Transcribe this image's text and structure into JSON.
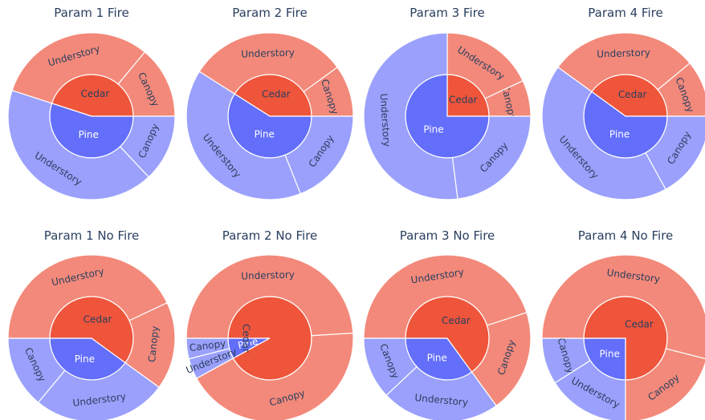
{
  "colors": {
    "pine_inner": "#636efa",
    "pine_outer": "#9aa0fb",
    "cedar_inner": "#ef553b",
    "cedar_outer": "#f3897a",
    "border": "#ffffff",
    "inner_text": "#ffffff",
    "outer_text": "#2a3f5f"
  },
  "chart_data": [
    {
      "type": "sunburst",
      "title": "Param 1 Fire",
      "rows": [
        {
          "label": "Cedar",
          "value": 45,
          "children": [
            {
              "label": "Canopy",
              "value": 14
            },
            {
              "label": "Understory",
              "value": 31
            }
          ]
        },
        {
          "label": "Pine",
          "value": 55,
          "children": [
            {
              "label": "Understory",
              "value": 42
            },
            {
              "label": "Canopy",
              "value": 13
            }
          ]
        }
      ]
    },
    {
      "type": "sunburst",
      "title": "Param 2 Fire",
      "rows": [
        {
          "label": "Cedar",
          "value": 41,
          "children": [
            {
              "label": "Canopy",
              "value": 10
            },
            {
              "label": "Understory",
              "value": 31
            }
          ]
        },
        {
          "label": "Pine",
          "value": 59,
          "children": [
            {
              "label": "Understory",
              "value": 40
            },
            {
              "label": "Canopy",
              "value": 19
            }
          ]
        }
      ]
    },
    {
      "type": "sunburst",
      "title": "Param 3 Fire",
      "rows": [
        {
          "label": "Cedar",
          "value": 25,
          "children": [
            {
              "label": "Canopy",
              "value": 7
            },
            {
              "label": "Understory",
              "value": 18
            }
          ]
        },
        {
          "label": "Pine",
          "value": 75,
          "children": [
            {
              "label": "Understory",
              "value": 52
            },
            {
              "label": "Canopy",
              "value": 23
            }
          ]
        }
      ]
    },
    {
      "type": "sunburst",
      "title": "Param 4 Fire",
      "rows": [
        {
          "label": "Cedar",
          "value": 40,
          "children": [
            {
              "label": "Canopy",
              "value": 11
            },
            {
              "label": "Understory",
              "value": 29
            }
          ]
        },
        {
          "label": "Pine",
          "value": 60,
          "children": [
            {
              "label": "Understory",
              "value": 43
            },
            {
              "label": "Canopy",
              "value": 17
            }
          ]
        }
      ]
    },
    {
      "type": "sunburst",
      "title": "Param 1 No Fire",
      "rows": [
        {
          "label": "Pine",
          "value": 40,
          "children": [
            {
              "label": "Canopy",
              "value": 14
            },
            {
              "label": "Understory",
              "value": 26
            }
          ]
        },
        {
          "label": "Cedar",
          "value": 60,
          "children": [
            {
              "label": "Canopy",
              "value": 17
            },
            {
              "label": "Understory",
              "value": 43
            }
          ]
        }
      ]
    },
    {
      "type": "sunburst",
      "title": "Param 2 No Fire",
      "rows": [
        {
          "label": "Pine",
          "value": 8,
          "children": [
            {
              "label": "Canopy",
              "value": 4
            },
            {
              "label": "Understory",
              "value": 4
            }
          ]
        },
        {
          "label": "Cedar",
          "value": 92,
          "children": [
            {
              "label": "Canopy",
              "value": 43
            },
            {
              "label": "Understory",
              "value": 49
            }
          ]
        }
      ]
    },
    {
      "type": "sunburst",
      "title": "Param 3 No Fire",
      "rows": [
        {
          "label": "Pine",
          "value": 35,
          "children": [
            {
              "label": "Canopy",
              "value": 12
            },
            {
              "label": "Understory",
              "value": 23
            }
          ]
        },
        {
          "label": "Cedar",
          "value": 65,
          "children": [
            {
              "label": "Canopy",
              "value": 20
            },
            {
              "label": "Understory",
              "value": 45
            }
          ]
        }
      ]
    },
    {
      "type": "sunburst",
      "title": "Param 4 No Fire",
      "rows": [
        {
          "label": "Pine",
          "value": 25,
          "children": [
            {
              "label": "Canopy",
              "value": 9
            },
            {
              "label": "Understory",
              "value": 16
            }
          ]
        },
        {
          "label": "Cedar",
          "value": 75,
          "children": [
            {
              "label": "Canopy",
              "value": 21
            },
            {
              "label": "Understory",
              "value": 54
            }
          ]
        }
      ]
    }
  ]
}
